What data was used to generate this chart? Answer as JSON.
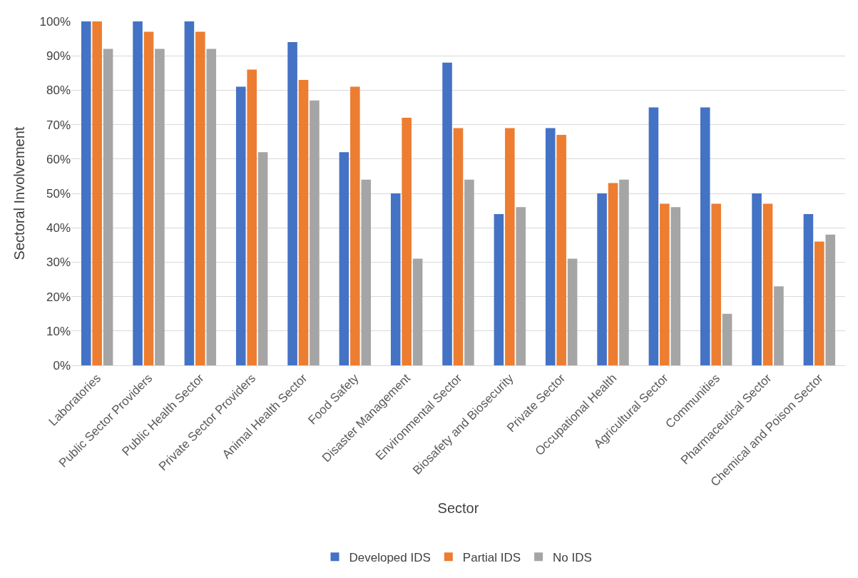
{
  "chart_data": {
    "type": "bar",
    "xlabel": "Sector",
    "ylabel": "Sectoral Involvement",
    "categories": [
      "Laboratories",
      "Public Sector Providers",
      "Public Health Sector",
      "Private Sector Providers",
      "Animal Health Sector",
      "Food Safety",
      "Disaster Management",
      "Environmental Sector",
      "Biosafety and Biosecurity",
      "Private Sector",
      "Occupational Health",
      "Agricultural Sector",
      "Communities",
      "Pharmaceutical Sector",
      "Chemical and Poison Sector"
    ],
    "series": [
      {
        "name": "Developed IDS",
        "color": "#4472c4",
        "values": [
          100,
          100,
          100,
          81,
          94,
          62,
          50,
          88,
          44,
          69,
          50,
          75,
          75,
          50,
          44
        ]
      },
      {
        "name": "Partial IDS",
        "color": "#ed7d31",
        "values": [
          100,
          97,
          97,
          86,
          83,
          81,
          72,
          69,
          69,
          67,
          53,
          47,
          47,
          47,
          36
        ]
      },
      {
        "name": "No IDS",
        "color": "#a5a5a5",
        "values": [
          92,
          92,
          92,
          62,
          77,
          54,
          31,
          54,
          46,
          31,
          54,
          46,
          15,
          23,
          38
        ]
      }
    ],
    "ylim": [
      0,
      100
    ],
    "yticks": [
      {
        "value": 0,
        "label": "0%"
      },
      {
        "value": 10,
        "label": "10%"
      },
      {
        "value": 20,
        "label": "20%"
      },
      {
        "value": 30,
        "label": "30%"
      },
      {
        "value": 40,
        "label": "40%"
      },
      {
        "value": 50,
        "label": "50%"
      },
      {
        "value": 60,
        "label": "60%"
      },
      {
        "value": 70,
        "label": "70%"
      },
      {
        "value": 80,
        "label": "80%"
      },
      {
        "value": 90,
        "label": "90%"
      },
      {
        "value": 100,
        "label": "100%"
      }
    ],
    "grid": "y",
    "legend": "bottom"
  }
}
